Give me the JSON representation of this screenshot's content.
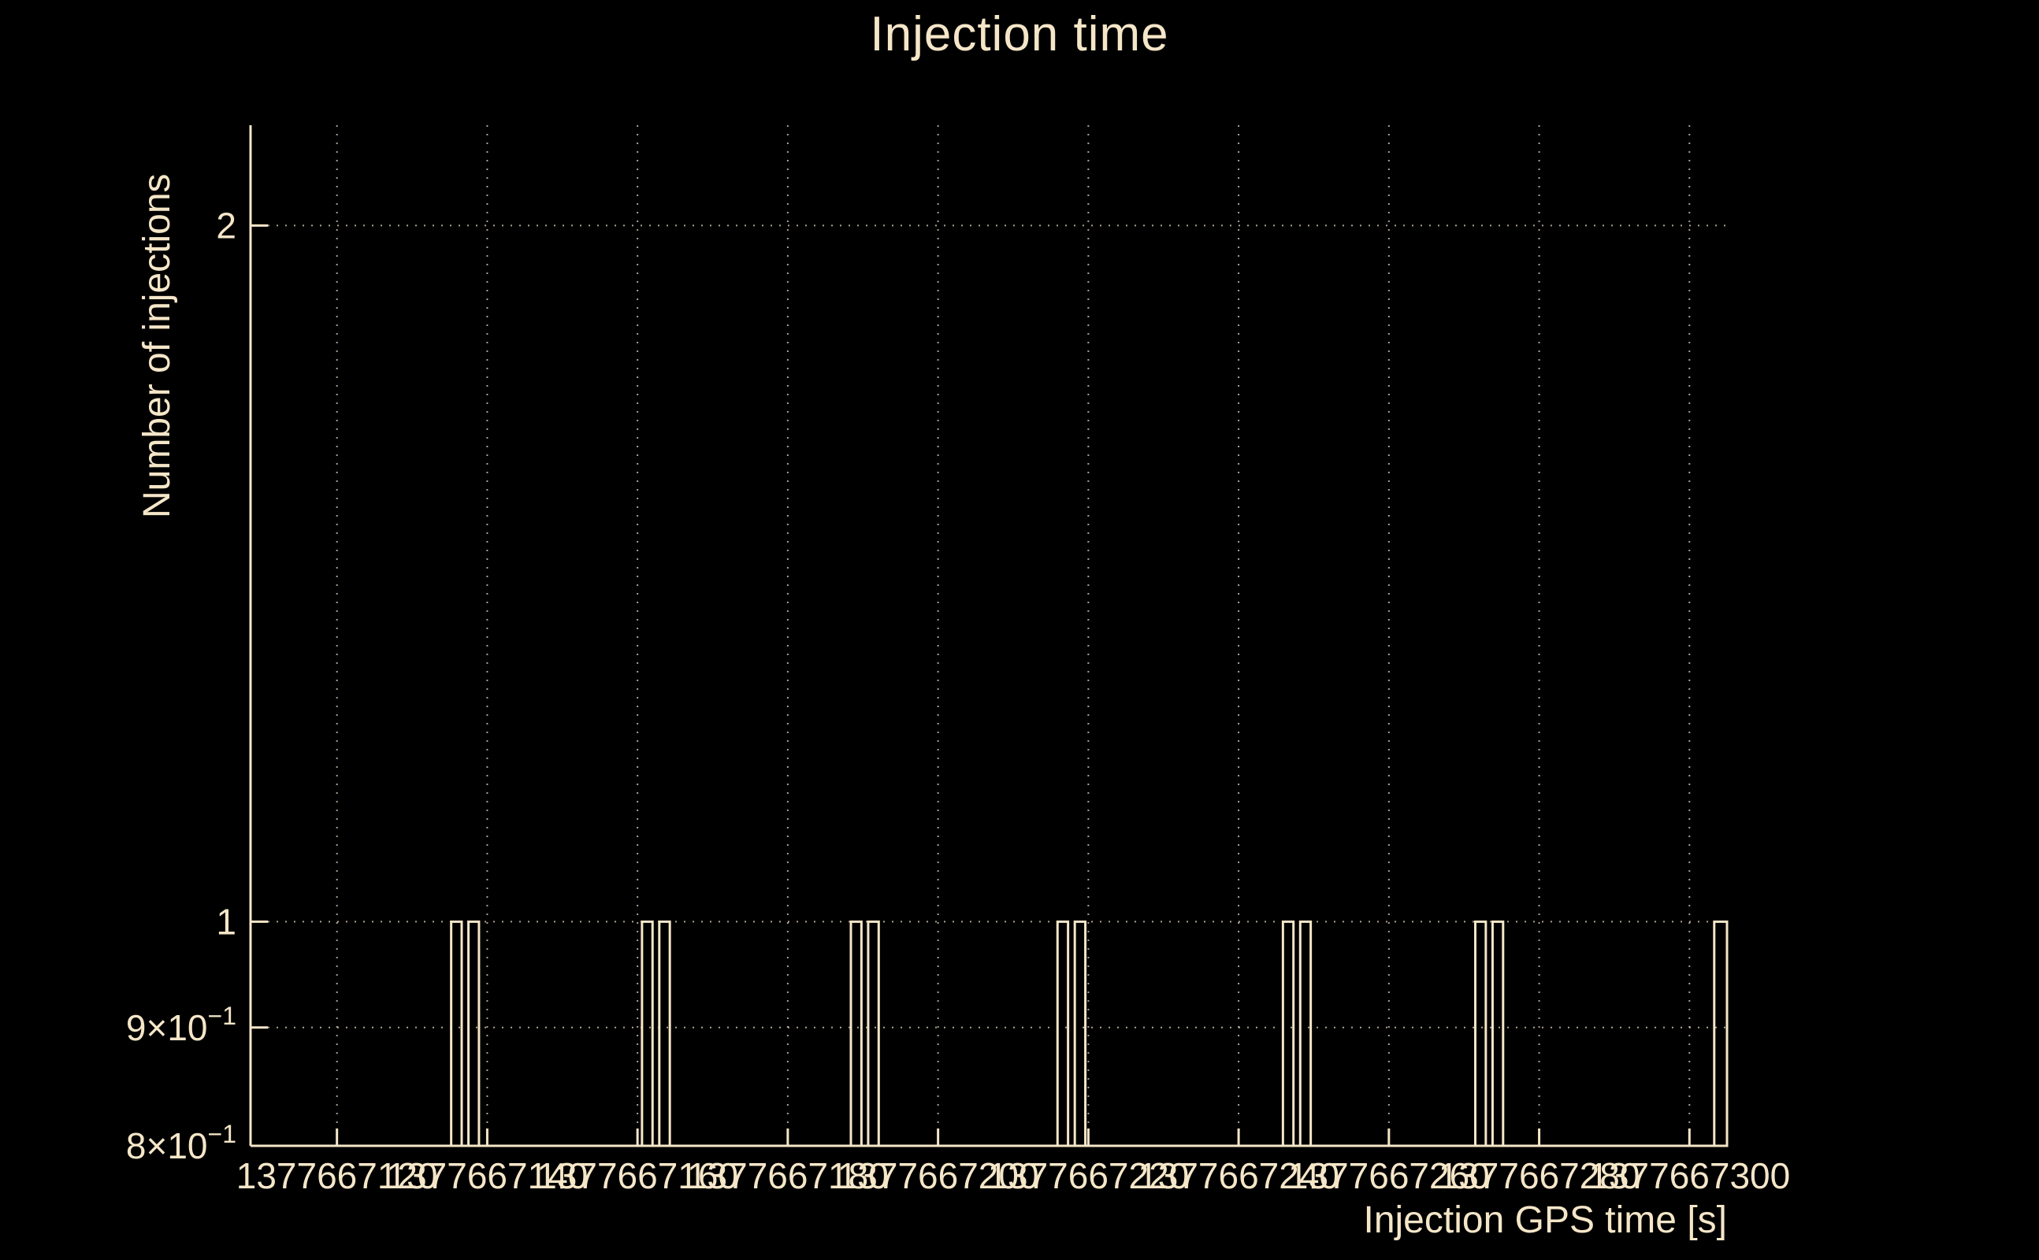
{
  "figure": {
    "background_color": "#000000",
    "foreground_color": "#f5e6c8"
  },
  "chart_data": {
    "type": "bar",
    "subtype": "histogram-outline",
    "title": "Injection time",
    "xlabel": "Injection GPS time [s]",
    "ylabel": "Number of injections",
    "yscale": "log",
    "grid": true,
    "legend": "none",
    "xlim": [
      1377667108.5,
      1377667305.0
    ],
    "ylim": [
      0.8,
      2.21
    ],
    "xticks": [
      {
        "value": 1377667120,
        "label": "1377667120"
      },
      {
        "value": 1377667140,
        "label": "1377667140"
      },
      {
        "value": 1377667160,
        "label": "1377667160"
      },
      {
        "value": 1377667180,
        "label": "1377667180"
      },
      {
        "value": 1377667200,
        "label": "1377667200"
      },
      {
        "value": 1377667220,
        "label": "1377667220"
      },
      {
        "value": 1377667240,
        "label": "1377667240"
      },
      {
        "value": 1377667260,
        "label": "1377667260"
      },
      {
        "value": 1377667280,
        "label": "1377667280"
      },
      {
        "value": 1377667300,
        "label": "1377667300"
      }
    ],
    "yticks": [
      {
        "value": 2,
        "label": "2",
        "sup": ""
      },
      {
        "value": 1,
        "label": "1",
        "sup": ""
      },
      {
        "value": 0.9,
        "label": "9×10",
        "sup": "−1"
      },
      {
        "value": 0.8,
        "label": "8×10",
        "sup": "−1"
      }
    ],
    "bins": [
      {
        "t_start": 1377667135.2,
        "t_end": 1377667136.6,
        "count": 1
      },
      {
        "t_start": 1377667137.5,
        "t_end": 1377667138.9,
        "count": 1
      },
      {
        "t_start": 1377667160.6,
        "t_end": 1377667162.0,
        "count": 1
      },
      {
        "t_start": 1377667162.9,
        "t_end": 1377667164.3,
        "count": 1
      },
      {
        "t_start": 1377667188.4,
        "t_end": 1377667189.8,
        "count": 1
      },
      {
        "t_start": 1377667190.7,
        "t_end": 1377667192.1,
        "count": 1
      },
      {
        "t_start": 1377667215.9,
        "t_end": 1377667217.3,
        "count": 1
      },
      {
        "t_start": 1377667218.2,
        "t_end": 1377667219.6,
        "count": 1
      },
      {
        "t_start": 1377667245.9,
        "t_end": 1377667247.3,
        "count": 1
      },
      {
        "t_start": 1377667248.2,
        "t_end": 1377667249.6,
        "count": 1
      },
      {
        "t_start": 1377667271.5,
        "t_end": 1377667272.9,
        "count": 1
      },
      {
        "t_start": 1377667273.8,
        "t_end": 1377667275.2,
        "count": 1
      },
      {
        "t_start": 1377667303.3,
        "t_end": 1377667305.0,
        "count": 1
      }
    ]
  }
}
